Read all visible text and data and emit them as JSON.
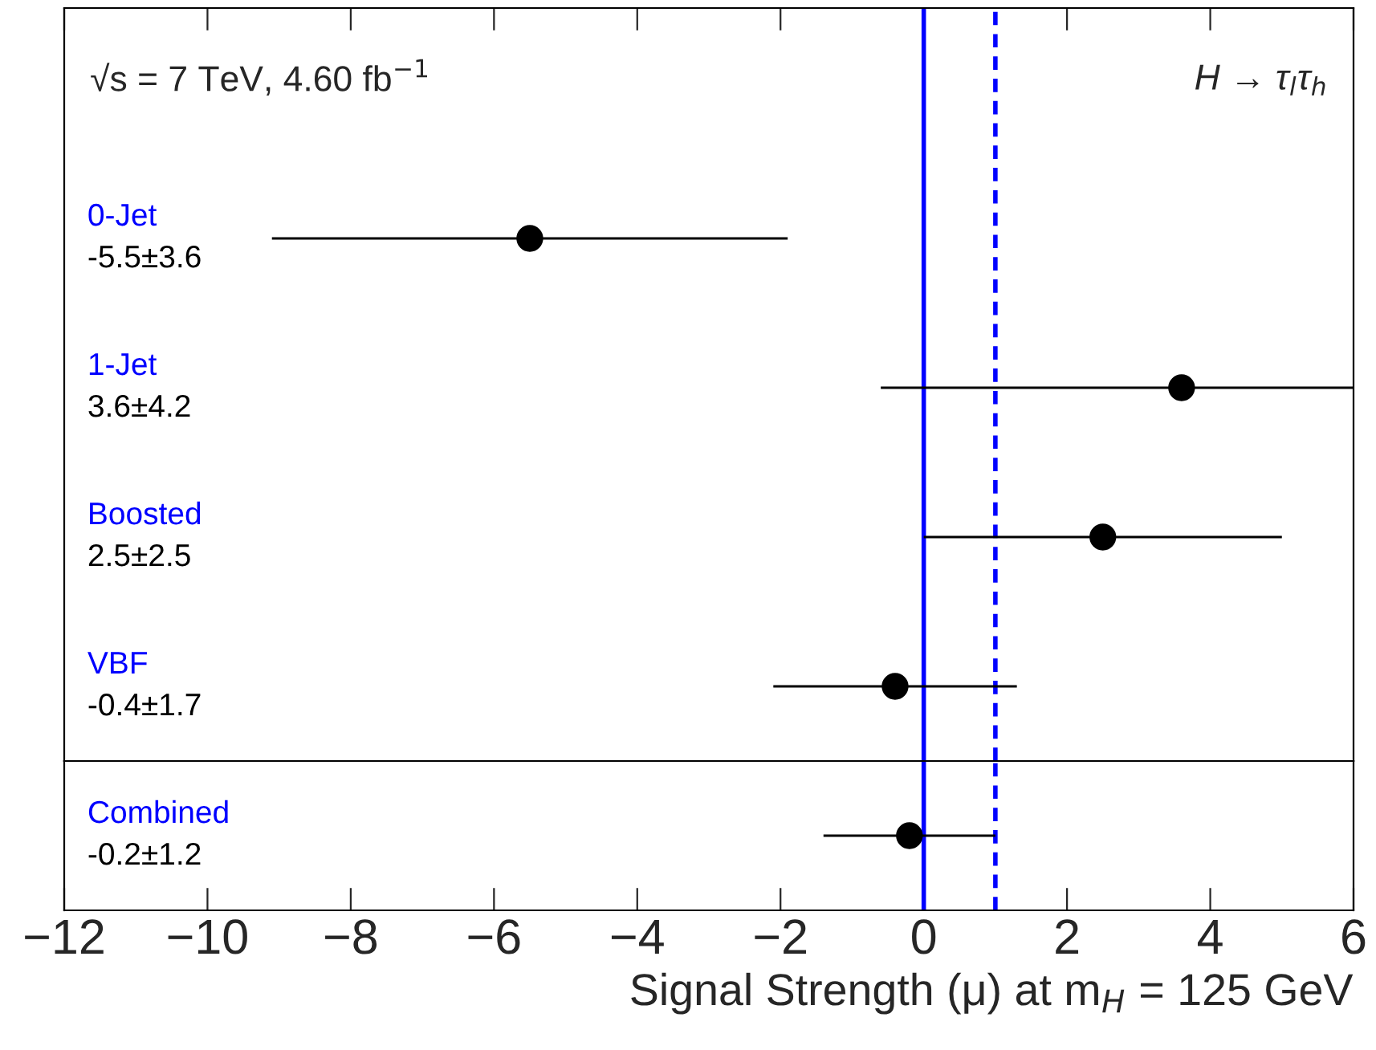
{
  "chart_data": [
    {
      "type": "scatter",
      "orientation": "horizontal",
      "categories": [
        "0-Jet",
        "1-Jet",
        "Boosted",
        "VBF"
      ],
      "series": [
        {
          "color": "#000000",
          "values": [
            -5.5,
            3.6,
            2.5,
            -0.4
          ],
          "errors": [
            3.6,
            [
              -0.6,
              6
            ],
            2.5,
            1.7
          ]
        }
      ],
      "marker": "circle",
      "xlim": [
        -12,
        6
      ],
      "xticks": [
        -12,
        -10,
        -8,
        -6,
        -4,
        -2,
        0,
        2,
        4,
        6
      ],
      "tick_labels": false,
      "grid": false,
      "ref_lines": [
        {
          "axis": "x",
          "value": 0,
          "color": "#0000ff",
          "line_style": "solid"
        },
        {
          "axis": "x",
          "value": 1,
          "color": "#0000ff",
          "line_style": "dashed"
        }
      ],
      "annotations": [
        "√s = 7 TeV, 4.60 fb$^{−1}$",
        "H → τ$_{l}$τ$_{h}$",
        "-5.5±3.6",
        "3.6±4.2",
        "2.5±2.5",
        "-0.4±1.7"
      ]
    },
    {
      "type": "scatter",
      "orientation": "horizontal",
      "categories": [
        "Combined"
      ],
      "series": [
        {
          "color": "#000000",
          "values": [
            -0.2
          ],
          "errors": [
            1.2
          ]
        }
      ],
      "marker": "circle",
      "xlim": [
        -12,
        6
      ],
      "xticks": [
        {
          "value": -12,
          "label": "−12"
        },
        {
          "value": -10,
          "label": "−10"
        },
        {
          "value": -8,
          "label": "−8"
        },
        {
          "value": -6,
          "label": "−6"
        },
        {
          "value": -4,
          "label": "−4"
        },
        {
          "value": -2,
          "label": "−2"
        },
        0,
        2,
        4,
        6
      ],
      "xlabel": "Signal Strength (μ) at m$_{H}$ = 125 GeV",
      "tick_labels": "x",
      "grid": false,
      "ref_lines": [
        {
          "axis": "x",
          "value": 0,
          "color": "#0000ff",
          "line_style": "solid"
        },
        {
          "axis": "x",
          "value": 1,
          "color": "#0000ff",
          "line_style": "dashed"
        }
      ],
      "annotations": [
        "-0.2±1.2"
      ]
    }
  ]
}
